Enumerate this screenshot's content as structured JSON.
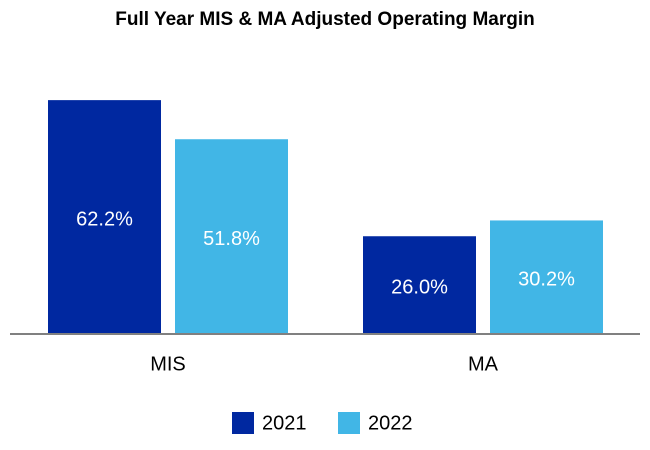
{
  "chart_data": {
    "type": "bar",
    "title": "Full Year MIS & MA Adjusted Operating Margin",
    "categories": [
      "MIS",
      "MA"
    ],
    "series": [
      {
        "name": "2021",
        "color": "#0028a0",
        "values": [
          62.2,
          26.0
        ],
        "value_labels": [
          "62.2%",
          "26.0%"
        ]
      },
      {
        "name": "2022",
        "color": "#41b6e6",
        "values": [
          51.8,
          30.2
        ],
        "value_labels": [
          "51.8%",
          "30.2%"
        ]
      }
    ],
    "legend": "bottom"
  }
}
